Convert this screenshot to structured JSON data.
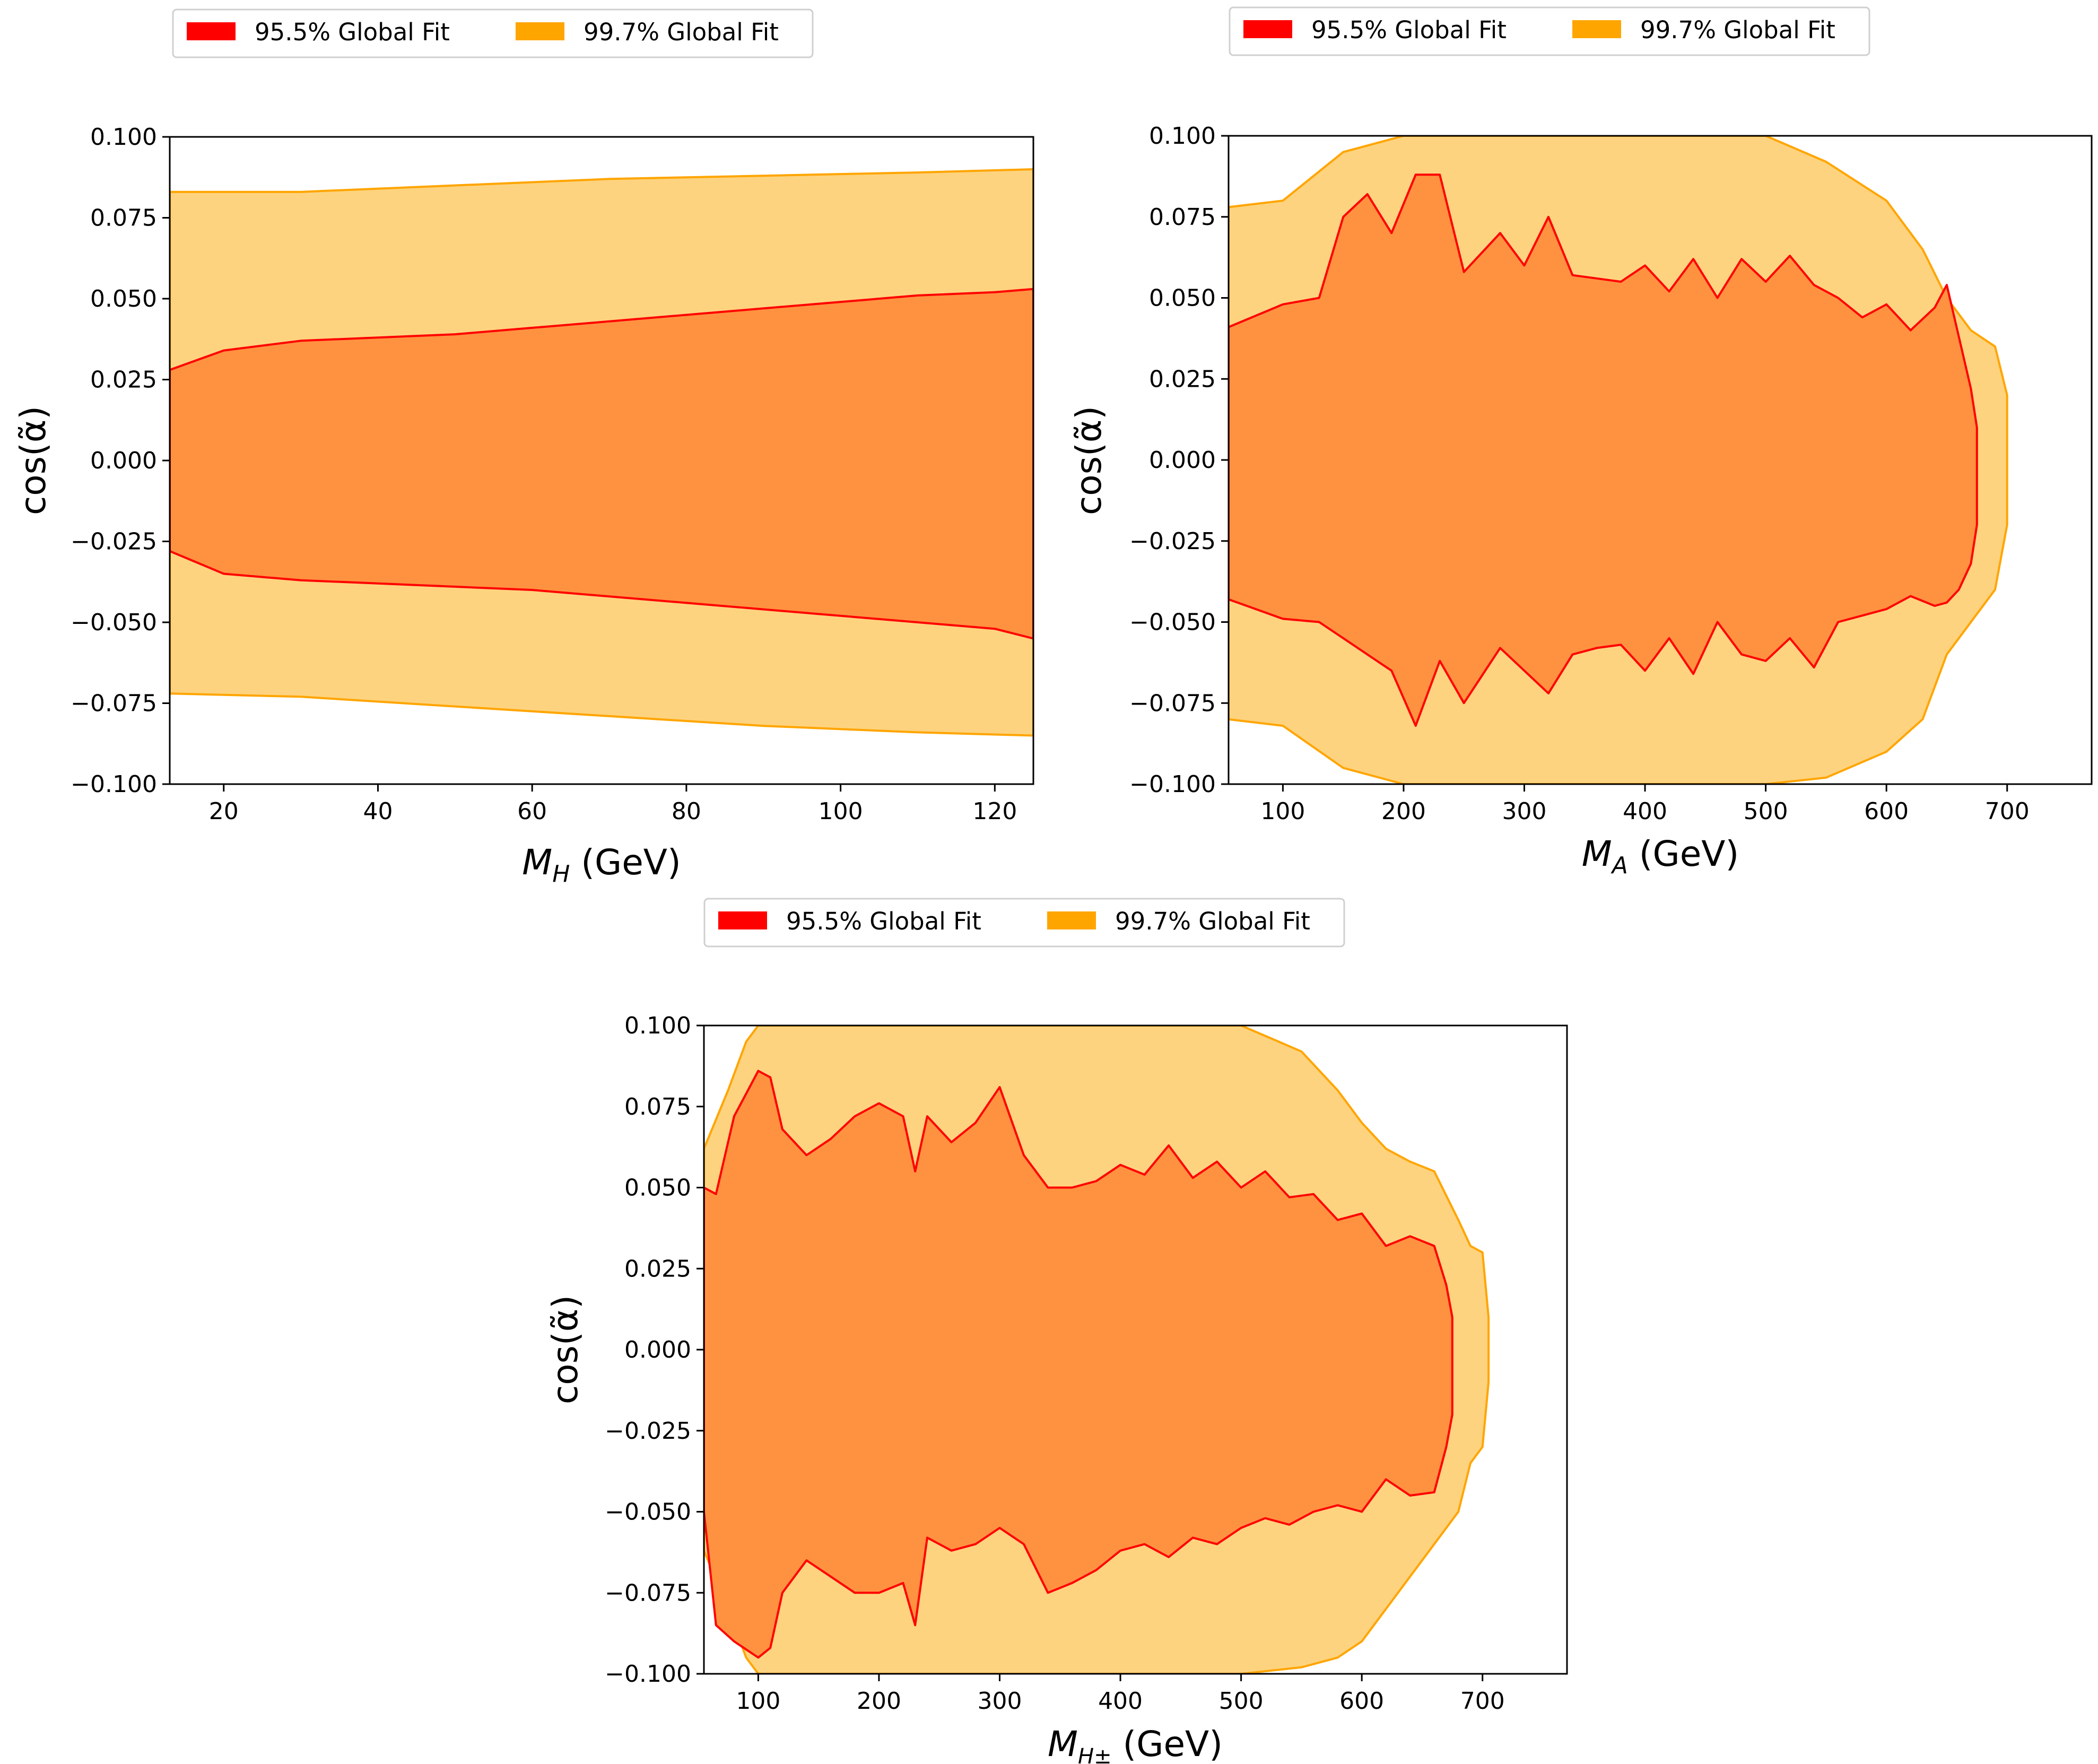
{
  "figure": {
    "colors": {
      "region_95": "#ff0000",
      "region_99": "#ffa500",
      "fill_95": "#ff9240",
      "fill_99": "#fed37f"
    }
  },
  "chart_data": [
    {
      "type": "area",
      "title": "",
      "xlabel_main": "M",
      "xlabel_sub": "H",
      "xlabel_unit": " (GeV)",
      "ylabel": "cos(α̃)",
      "xlim": [
        13,
        125
      ],
      "ylim": [
        -0.1,
        0.1
      ],
      "xticks": [
        20,
        40,
        60,
        80,
        100,
        120
      ],
      "yticks": [
        "0.100",
        "0.075",
        "0.050",
        "0.025",
        "0.000",
        "−0.025",
        "−0.050",
        "−0.075",
        "−0.100"
      ],
      "legend": [
        {
          "label": "95.5% Global Fit",
          "color": "#ff0000"
        },
        {
          "label": "99.7% Global Fit",
          "color": "#ffa500"
        }
      ],
      "series": [
        {
          "name": "99.7% Global Fit",
          "x": [
            13,
            30,
            50,
            70,
            90,
            110,
            125
          ],
          "upper": [
            0.083,
            0.083,
            0.085,
            0.087,
            0.088,
            0.089,
            0.09
          ],
          "lower": [
            -0.072,
            -0.073,
            -0.076,
            -0.079,
            -0.082,
            -0.084,
            -0.085
          ]
        },
        {
          "name": "95.5% Global Fit",
          "x": [
            13,
            20,
            30,
            40,
            50,
            60,
            70,
            80,
            90,
            100,
            110,
            120,
            125
          ],
          "upper": [
            0.028,
            0.034,
            0.037,
            0.038,
            0.039,
            0.041,
            0.043,
            0.045,
            0.047,
            0.049,
            0.051,
            0.052,
            0.053
          ],
          "lower": [
            -0.028,
            -0.035,
            -0.037,
            -0.038,
            -0.039,
            -0.04,
            -0.042,
            -0.044,
            -0.046,
            -0.048,
            -0.05,
            -0.052,
            -0.055
          ]
        }
      ]
    },
    {
      "type": "area",
      "title": "",
      "xlabel_main": "M",
      "xlabel_sub": "A",
      "xlabel_unit": " (GeV)",
      "ylabel": "cos(α̃)",
      "xlim": [
        55,
        770
      ],
      "ylim": [
        -0.1,
        0.1
      ],
      "xticks": [
        100,
        200,
        300,
        400,
        500,
        600,
        700
      ],
      "yticks": [
        "0.100",
        "0.075",
        "0.050",
        "0.025",
        "0.000",
        "−0.025",
        "−0.050",
        "−0.075",
        "−0.100"
      ],
      "legend": [
        {
          "label": "95.5% Global Fit",
          "color": "#ff0000"
        },
        {
          "label": "99.7% Global Fit",
          "color": "#ffa500"
        }
      ],
      "series": [
        {
          "name": "99.7% Global Fit",
          "x": [
            55,
            100,
            150,
            200,
            300,
            400,
            500,
            550,
            600,
            630,
            650,
            670,
            690,
            700
          ],
          "upper": [
            0.078,
            0.08,
            0.095,
            0.1,
            0.1,
            0.1,
            0.1,
            0.092,
            0.08,
            0.065,
            0.05,
            0.04,
            0.035,
            0.02
          ],
          "lower": [
            -0.08,
            -0.082,
            -0.095,
            -0.1,
            -0.1,
            -0.1,
            -0.1,
            -0.098,
            -0.09,
            -0.08,
            -0.06,
            -0.05,
            -0.04,
            -0.02
          ]
        },
        {
          "name": "95.5% Global Fit",
          "x": [
            55,
            100,
            130,
            150,
            170,
            190,
            210,
            230,
            250,
            280,
            300,
            320,
            340,
            360,
            380,
            400,
            420,
            440,
            460,
            480,
            500,
            520,
            540,
            560,
            580,
            600,
            620,
            640,
            650,
            660,
            670,
            675
          ],
          "upper": [
            0.041,
            0.048,
            0.05,
            0.075,
            0.082,
            0.07,
            0.088,
            0.088,
            0.058,
            0.07,
            0.06,
            0.075,
            0.057,
            0.056,
            0.055,
            0.06,
            0.052,
            0.062,
            0.05,
            0.062,
            0.055,
            0.063,
            0.054,
            0.05,
            0.044,
            0.048,
            0.04,
            0.047,
            0.054,
            0.038,
            0.022,
            0.01
          ],
          "lower": [
            -0.043,
            -0.049,
            -0.05,
            -0.055,
            -0.06,
            -0.065,
            -0.082,
            -0.062,
            -0.075,
            -0.058,
            -0.065,
            -0.072,
            -0.06,
            -0.058,
            -0.057,
            -0.065,
            -0.055,
            -0.066,
            -0.05,
            -0.06,
            -0.062,
            -0.055,
            -0.064,
            -0.05,
            -0.048,
            -0.046,
            -0.042,
            -0.045,
            -0.044,
            -0.04,
            -0.032,
            -0.02
          ]
        }
      ]
    },
    {
      "type": "area",
      "title": "",
      "xlabel_main": "M",
      "xlabel_sub": "H±",
      "xlabel_unit": " (GeV)",
      "ylabel": "cos(α̃)",
      "xlim": [
        55,
        770
      ],
      "ylim": [
        -0.1,
        0.1
      ],
      "xticks": [
        100,
        200,
        300,
        400,
        500,
        600,
        700
      ],
      "yticks": [
        "0.100",
        "0.075",
        "0.050",
        "0.025",
        "0.000",
        "−0.025",
        "−0.050",
        "−0.075",
        "−0.100"
      ],
      "legend": [
        {
          "label": "95.5% Global Fit",
          "color": "#ff0000"
        },
        {
          "label": "99.7% Global Fit",
          "color": "#ffa500"
        }
      ],
      "series": [
        {
          "name": "99.7% Global Fit",
          "x": [
            55,
            75,
            90,
            100,
            150,
            200,
            300,
            400,
            500,
            550,
            580,
            600,
            620,
            640,
            660,
            680,
            690,
            700,
            705
          ],
          "upper": [
            0.062,
            0.08,
            0.095,
            0.1,
            0.1,
            0.1,
            0.1,
            0.1,
            0.1,
            0.092,
            0.08,
            0.07,
            0.062,
            0.058,
            0.055,
            0.04,
            0.032,
            0.03,
            0.01
          ],
          "lower": [
            -0.062,
            -0.08,
            -0.095,
            -0.1,
            -0.1,
            -0.1,
            -0.1,
            -0.1,
            -0.1,
            -0.098,
            -0.095,
            -0.09,
            -0.08,
            -0.07,
            -0.06,
            -0.05,
            -0.035,
            -0.03,
            -0.01
          ]
        },
        {
          "name": "95.5% Global Fit",
          "x": [
            55,
            65,
            80,
            100,
            110,
            120,
            140,
            160,
            180,
            200,
            220,
            230,
            240,
            260,
            280,
            300,
            320,
            340,
            360,
            380,
            400,
            420,
            440,
            460,
            480,
            500,
            520,
            540,
            560,
            580,
            600,
            620,
            640,
            660,
            670,
            675
          ],
          "upper": [
            0.05,
            0.048,
            0.072,
            0.086,
            0.084,
            0.068,
            0.06,
            0.065,
            0.072,
            0.076,
            0.072,
            0.055,
            0.072,
            0.064,
            0.07,
            0.081,
            0.06,
            0.05,
            0.05,
            0.052,
            0.057,
            0.054,
            0.063,
            0.053,
            0.058,
            0.05,
            0.055,
            0.047,
            0.048,
            0.04,
            0.042,
            0.032,
            0.035,
            0.032,
            0.02,
            0.01
          ],
          "lower": [
            -0.05,
            -0.085,
            -0.09,
            -0.095,
            -0.092,
            -0.075,
            -0.065,
            -0.07,
            -0.075,
            -0.075,
            -0.072,
            -0.085,
            -0.058,
            -0.062,
            -0.06,
            -0.055,
            -0.06,
            -0.075,
            -0.072,
            -0.068,
            -0.062,
            -0.06,
            -0.064,
            -0.058,
            -0.06,
            -0.055,
            -0.052,
            -0.054,
            -0.05,
            -0.048,
            -0.05,
            -0.04,
            -0.045,
            -0.044,
            -0.03,
            -0.02
          ]
        }
      ]
    }
  ]
}
